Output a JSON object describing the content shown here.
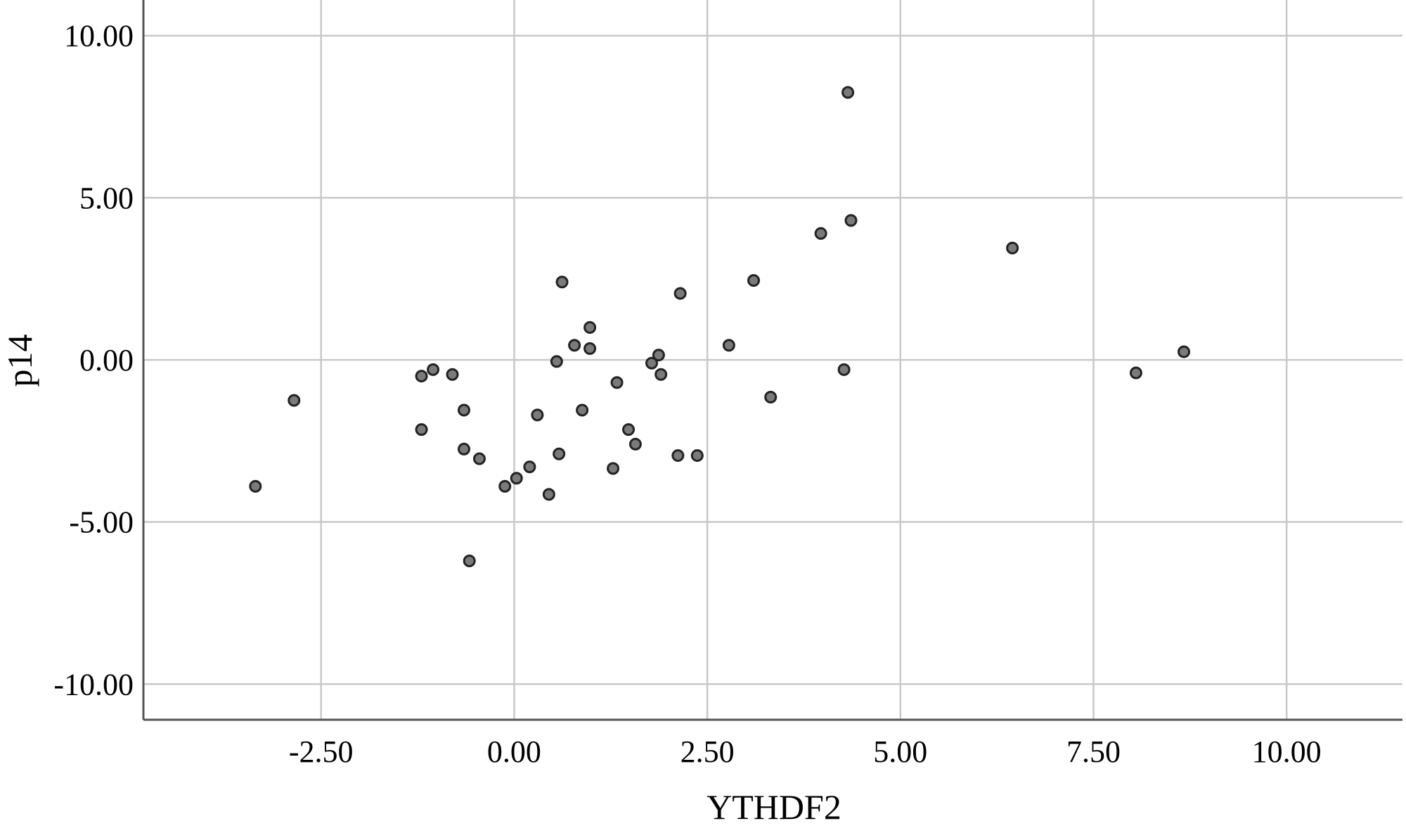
{
  "chart_data": {
    "type": "scatter",
    "title": "",
    "xlabel": "YTHDF2",
    "ylabel": "p14",
    "xlim": [
      -4.8,
      11.5
    ],
    "ylim": [
      -11.1,
      11.1
    ],
    "x_ticks": [
      -2.5,
      0.0,
      2.5,
      5.0,
      7.5,
      10.0
    ],
    "x_tick_labels": [
      "-2.50",
      "0.00",
      "2.50",
      "5.00",
      "7.50",
      "10.00"
    ],
    "y_ticks": [
      10.0,
      5.0,
      0.0,
      -5.0,
      -10.0
    ],
    "y_tick_labels": [
      "10.00",
      "5.00",
      "0.00",
      "-5.00",
      "-10.00"
    ],
    "grid": true,
    "colors": {
      "marker_fill": "#7a7a7a",
      "marker_edge": "#222222",
      "grid": "#c8c8c8",
      "axis": "#555555"
    },
    "series": [
      {
        "points": [
          {
            "x": -3.35,
            "y": -3.9
          },
          {
            "x": -2.85,
            "y": -1.25
          },
          {
            "x": -1.2,
            "y": -0.5
          },
          {
            "x": -1.05,
            "y": -0.3
          },
          {
            "x": -1.2,
            "y": -2.15
          },
          {
            "x": -0.8,
            "y": -0.45
          },
          {
            "x": -0.65,
            "y": -1.55
          },
          {
            "x": -0.65,
            "y": -2.75
          },
          {
            "x": -0.45,
            "y": -3.05
          },
          {
            "x": -0.58,
            "y": -6.2
          },
          {
            "x": -0.12,
            "y": -3.9
          },
          {
            "x": 0.03,
            "y": -3.65
          },
          {
            "x": 0.2,
            "y": -3.3
          },
          {
            "x": 0.3,
            "y": -1.7
          },
          {
            "x": 0.45,
            "y": -4.15
          },
          {
            "x": 0.55,
            "y": -0.05
          },
          {
            "x": 0.58,
            "y": -2.9
          },
          {
            "x": 0.62,
            "y": 2.4
          },
          {
            "x": 0.78,
            "y": 0.45
          },
          {
            "x": 0.88,
            "y": -1.55
          },
          {
            "x": 0.98,
            "y": 1.0
          },
          {
            "x": 0.98,
            "y": 0.35
          },
          {
            "x": 1.28,
            "y": -3.35
          },
          {
            "x": 1.33,
            "y": -0.7
          },
          {
            "x": 1.48,
            "y": -2.15
          },
          {
            "x": 1.57,
            "y": -2.6
          },
          {
            "x": 1.78,
            "y": -0.1
          },
          {
            "x": 1.87,
            "y": 0.15
          },
          {
            "x": 1.9,
            "y": -0.45
          },
          {
            "x": 2.12,
            "y": -2.95
          },
          {
            "x": 2.15,
            "y": 2.05
          },
          {
            "x": 2.37,
            "y": -2.95
          },
          {
            "x": 2.78,
            "y": 0.45
          },
          {
            "x": 3.1,
            "y": 2.45
          },
          {
            "x": 3.32,
            "y": -1.15
          },
          {
            "x": 3.97,
            "y": 3.9
          },
          {
            "x": 4.27,
            "y": -0.3
          },
          {
            "x": 4.32,
            "y": 8.25
          },
          {
            "x": 4.36,
            "y": 4.3
          },
          {
            "x": 6.45,
            "y": 3.45
          },
          {
            "x": 8.05,
            "y": -0.4
          },
          {
            "x": 8.67,
            "y": 0.25
          }
        ]
      }
    ]
  }
}
